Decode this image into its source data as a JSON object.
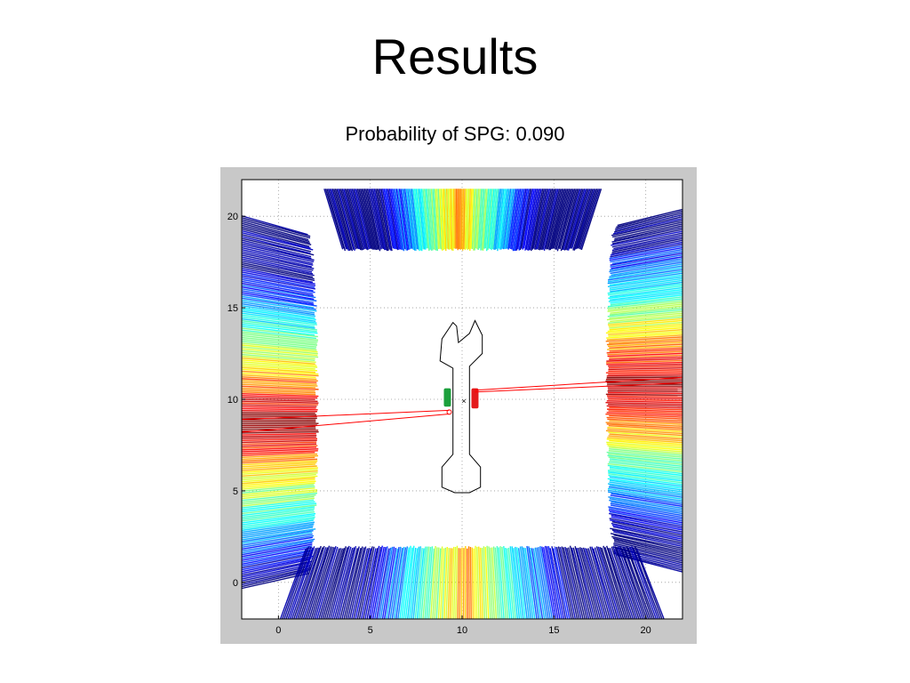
{
  "slide": {
    "title": "Results"
  },
  "chart_data": {
    "type": "line",
    "title": "Probability of SPG: 0.090",
    "xlabel": "",
    "ylabel": "",
    "xlim": [
      -2,
      22
    ],
    "ylim": [
      -2,
      22
    ],
    "xticks": [
      0,
      5,
      10,
      15,
      20
    ],
    "yticks": [
      0,
      5,
      10,
      15,
      20
    ],
    "grid": true,
    "grid_style": "dotted",
    "colormap": "jet",
    "colormap_stops": [
      "#00007f",
      "#0000ff",
      "#007fff",
      "#00ffff",
      "#7fff7f",
      "#ffff00",
      "#ff7f00",
      "#ff0000",
      "#7f0000"
    ],
    "ray_fans": [
      {
        "side": "left",
        "x_range": [
          -2,
          2
        ],
        "y_range": [
          0.5,
          19
        ],
        "peak_y": 8.8
      },
      {
        "side": "right",
        "x_range": [
          18,
          22
        ],
        "y_range": [
          1.5,
          19.5
        ],
        "peak_y": 10.8
      },
      {
        "side": "top",
        "x_range": [
          3.5,
          16.5
        ],
        "y_range": [
          18.1,
          21.5
        ],
        "peak_x": 9.8
      },
      {
        "side": "bottom",
        "x_range": [
          1.5,
          19.5
        ],
        "y_range": [
          -2,
          2
        ],
        "peak_x": 10.2
      }
    ],
    "object": {
      "name": "wrench",
      "outline": [
        [
          9.5,
          14.2
        ],
        [
          8.9,
          13.3
        ],
        [
          8.8,
          12.1
        ],
        [
          9.5,
          11.7
        ],
        [
          9.5,
          7.0
        ],
        [
          8.9,
          6.3
        ],
        [
          8.9,
          5.2
        ],
        [
          9.6,
          4.9
        ],
        [
          10.4,
          4.9
        ],
        [
          11.0,
          5.2
        ],
        [
          11.0,
          6.3
        ],
        [
          10.4,
          7.0
        ],
        [
          10.4,
          11.8
        ],
        [
          11.1,
          12.5
        ],
        [
          11.1,
          13.5
        ],
        [
          10.7,
          14.3
        ],
        [
          10.4,
          13.6
        ],
        [
          9.8,
          13.1
        ],
        [
          9.7,
          14.0
        ]
      ],
      "center_marker": [
        10.1,
        9.9
      ]
    },
    "contacts": [
      {
        "color": "#1ca03c",
        "x": 9.2,
        "y_range": [
          9.6,
          10.6
        ]
      },
      {
        "color": "#e41a1c",
        "x": 10.7,
        "y_range": [
          9.5,
          10.6
        ]
      }
    ],
    "highlighted_rays": {
      "color": "#ff0000",
      "segments": [
        [
          [
            9.3,
            9.4
          ],
          [
            -2,
            8.9
          ]
        ],
        [
          [
            9.3,
            9.2
          ],
          [
            -2,
            8.2
          ]
        ],
        [
          [
            10.7,
            10.4
          ],
          [
            22,
            10.9
          ]
        ],
        [
          [
            10.7,
            10.5
          ],
          [
            22,
            11.2
          ]
        ]
      ]
    }
  }
}
